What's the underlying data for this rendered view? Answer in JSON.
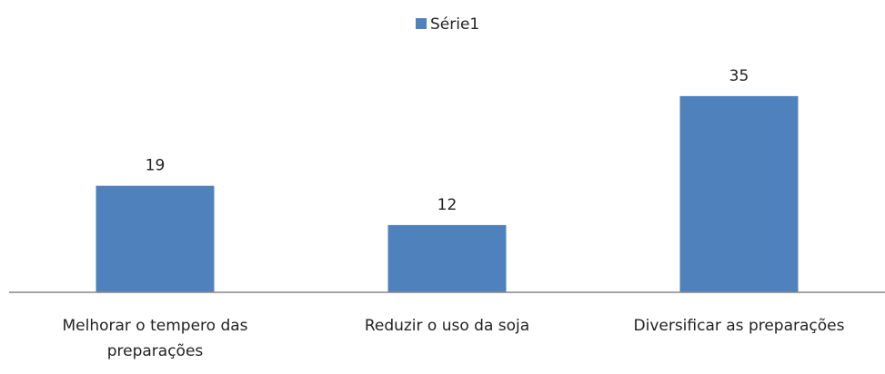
{
  "chart_data": {
    "type": "bar",
    "categories": [
      "Melhorar o tempero das preparações",
      "Reduzir o uso da soja",
      "Diversificar as preparações"
    ],
    "series": [
      {
        "name": "Série1",
        "color": "#4f81bd",
        "values": [
          19,
          12,
          35
        ]
      }
    ],
    "ylim": [
      0,
      40
    ],
    "legend": "top"
  }
}
